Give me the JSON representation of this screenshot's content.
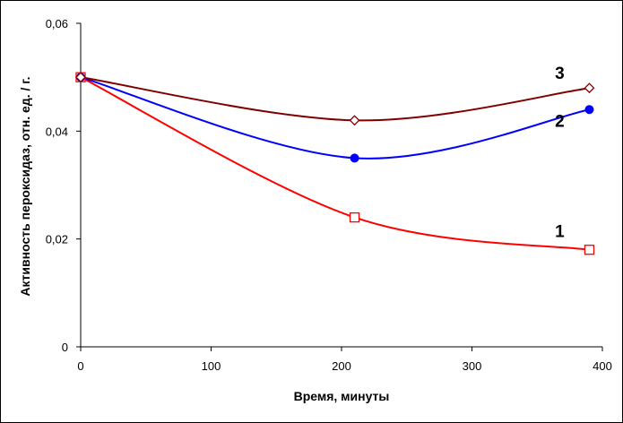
{
  "chart_data": {
    "type": "line",
    "xlabel": "Время, минуты",
    "ylabel": "Активность пероксидаз, отн. ед. / г.",
    "xlim": [
      0,
      400
    ],
    "ylim": [
      0,
      0.06
    ],
    "x_ticks": [
      "0",
      "100",
      "200",
      "300",
      "400"
    ],
    "y_ticks": [
      "0",
      "0,02",
      "0,04",
      "0,06"
    ],
    "grid": false,
    "series": [
      {
        "name": "1",
        "color": "#ff0000",
        "marker": "open-square",
        "x": [
          0,
          210,
          390
        ],
        "y": [
          0.05,
          0.024,
          0.018
        ]
      },
      {
        "name": "2",
        "color": "#0000ff",
        "marker": "filled-circle",
        "x": [
          0,
          210,
          390
        ],
        "y": [
          0.05,
          0.035,
          0.044
        ]
      },
      {
        "name": "3",
        "color": "#800000",
        "marker": "open-diamond",
        "x": [
          0,
          210,
          390
        ],
        "y": [
          0.05,
          0.042,
          0.048
        ]
      }
    ]
  }
}
